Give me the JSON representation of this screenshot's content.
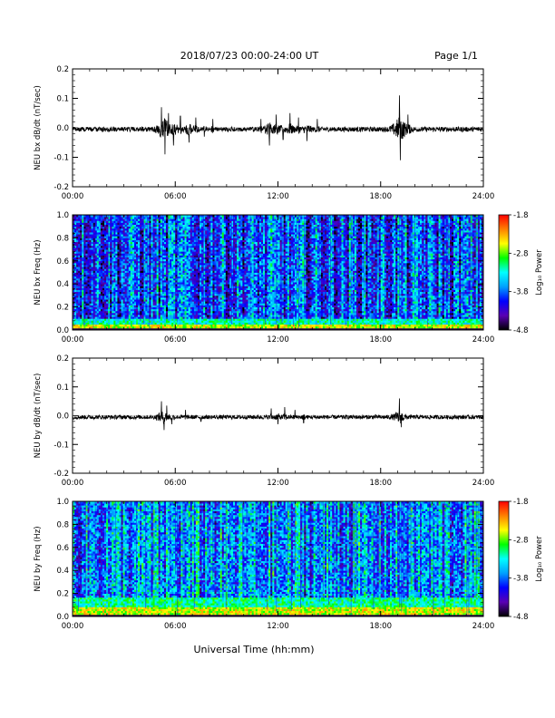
{
  "header": {
    "title": "2018/07/23  00:00-24:00 UT",
    "page": "Page 1/1"
  },
  "footer": {
    "xlabel": "Universal Time (hh:mm)"
  },
  "colorbar": {
    "label": "Log₁₀ Power",
    "ticks": [
      "-1.8",
      "-2.8",
      "-3.8",
      "-4.8"
    ],
    "tick_values": [
      -1.8,
      -2.8,
      -3.8,
      -4.8
    ],
    "range": [
      -4.8,
      -1.8
    ],
    "colors": [
      "#000000",
      "#5a00b4",
      "#0000ff",
      "#00a0ff",
      "#00ffff",
      "#00ff00",
      "#ffff00",
      "#ff8000",
      "#ff0000"
    ]
  },
  "chart_data": [
    {
      "type": "line",
      "panel": "bx-derivative",
      "ylabel": "NEU bx dB/dt (nT/sec)",
      "xlim": [
        0,
        24
      ],
      "ylim": [
        -0.2,
        0.2
      ],
      "xticks": [
        "00:00",
        "06:00",
        "12:00",
        "18:00",
        "24:00"
      ],
      "yticks": [
        "-0.2",
        "-0.1",
        "0.0",
        "0.1",
        "0.2"
      ],
      "ytick_values": [
        -0.2,
        -0.1,
        0.0,
        0.1,
        0.2
      ],
      "baseline": -0.005,
      "noise": 0.008,
      "series": [
        {
          "x": [
            5.2,
            5.4,
            5.6,
            5.9,
            6.3,
            6.8,
            7.2,
            7.7,
            8.2,
            11.0,
            11.5,
            11.9,
            12.3,
            12.7,
            13.2,
            13.7,
            14.3,
            19.1,
            19.15,
            19.6
          ],
          "y": [
            0.07,
            -0.09,
            0.05,
            -0.06,
            0.04,
            -0.05,
            0.035,
            -0.03,
            0.03,
            0.03,
            -0.06,
            0.045,
            -0.04,
            0.05,
            0.035,
            -0.045,
            0.03,
            0.11,
            -0.11,
            0.045
          ]
        }
      ]
    },
    {
      "type": "heatmap",
      "panel": "bx-spectrogram",
      "ylabel": "NEU bx Freq (Hz)",
      "xlim": [
        0,
        24
      ],
      "ylim": [
        0.0,
        1.0
      ],
      "xticks": [
        "00:00",
        "06:00",
        "12:00",
        "18:00",
        "24:00"
      ],
      "yticks": [
        "0.0",
        "0.2",
        "0.4",
        "0.6",
        "0.8",
        "1.0"
      ],
      "ytick_values": [
        0.0,
        0.2,
        0.4,
        0.6,
        0.8,
        1.0
      ],
      "zlim": [
        -4.8,
        -1.8
      ],
      "background_level": -3.9,
      "low_frequency_band": {
        "ylim": [
          0.0,
          0.05
        ],
        "level": -2.6
      }
    },
    {
      "type": "line",
      "panel": "by-derivative",
      "ylabel": "NEU by dB/dt (nT/sec)",
      "xlim": [
        0,
        24
      ],
      "ylim": [
        -0.2,
        0.2
      ],
      "xticks": [
        "00:00",
        "06:00",
        "12:00",
        "18:00",
        "24:00"
      ],
      "yticks": [
        "-0.2",
        "-0.1",
        "0.0",
        "0.1",
        "0.2"
      ],
      "ytick_values": [
        -0.2,
        -0.1,
        0.0,
        0.1,
        0.2
      ],
      "baseline": -0.005,
      "noise": 0.007,
      "series": [
        {
          "x": [
            5.2,
            5.35,
            5.5,
            5.8,
            6.6,
            7.5,
            11.6,
            12.0,
            12.4,
            13.0,
            13.5,
            19.1,
            19.2
          ],
          "y": [
            0.05,
            -0.05,
            0.035,
            -0.03,
            0.02,
            -0.02,
            0.025,
            -0.03,
            0.03,
            0.02,
            -0.025,
            0.06,
            -0.04
          ]
        }
      ]
    },
    {
      "type": "heatmap",
      "panel": "by-spectrogram",
      "ylabel": "NEU by Freq (Hz)",
      "xlim": [
        0,
        24
      ],
      "ylim": [
        0.0,
        1.0
      ],
      "xticks": [
        "00:00",
        "06:00",
        "12:00",
        "18:00",
        "24:00"
      ],
      "yticks": [
        "0.0",
        "0.2",
        "0.4",
        "0.6",
        "0.8",
        "1.0"
      ],
      "ytick_values": [
        0.0,
        0.2,
        0.4,
        0.6,
        0.8,
        1.0
      ],
      "zlim": [
        -4.8,
        -1.8
      ],
      "background_level": -3.7,
      "low_frequency_band": {
        "ylim": [
          0.0,
          0.08
        ],
        "level": -2.6
      }
    }
  ]
}
